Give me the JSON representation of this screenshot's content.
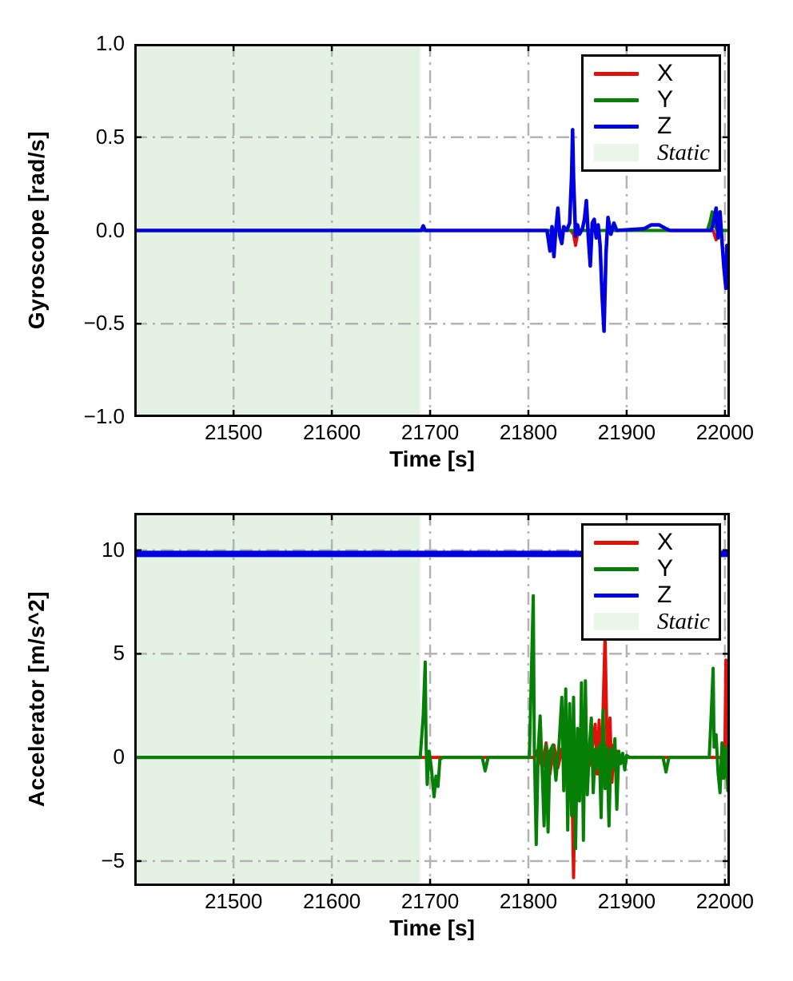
{
  "figure": {
    "background_color": "#ffffff"
  },
  "chart_data": [
    {
      "type": "line",
      "title": "",
      "xlabel": "Time [s]",
      "ylabel": "Gyroscope [rad/s]",
      "xlim": [
        21399,
        22005
      ],
      "ylim": [
        -1.0,
        1.0
      ],
      "xticks": [
        21500,
        21600,
        21700,
        21800,
        21900,
        22000
      ],
      "xtick_labels": [
        "21500",
        "21600",
        "21700",
        "21800",
        "21900",
        "22000"
      ],
      "yticks": [
        1.0,
        0.5,
        0.0,
        -0.5,
        -1.0
      ],
      "ytick_labels": [
        "1.0",
        "0.5",
        "0.0",
        "−0.5",
        "−1.0"
      ],
      "grid": {
        "style": "dash-dot",
        "color": "#b3b3b3",
        "on": true
      },
      "axes": {
        "border_color": "#000000",
        "tick_direction": "in"
      },
      "legend_position": "upper right",
      "legend": [
        {
          "label": "X",
          "swatch": "line",
          "color": "#e01108"
        },
        {
          "label": "Y",
          "swatch": "line",
          "color": "#067f06"
        },
        {
          "label": "Z",
          "swatch": "line",
          "color": "#0000e0"
        },
        {
          "label": "Static",
          "swatch": "patch",
          "color": "#e9f7e6",
          "italic": true
        }
      ],
      "static_region": {
        "label": "Static",
        "x0": 21399,
        "x1": 21690,
        "color": "#e3f2e2"
      },
      "series": [
        {
          "name": "X",
          "color": "#e01108",
          "lw": 4,
          "points": [
            [
              21399,
              0
            ],
            [
              21843,
              0
            ],
            [
              21846,
              -0.02
            ],
            [
              21848,
              -0.08
            ],
            [
              21850,
              -0.02
            ],
            [
              21853,
              0
            ],
            [
              21988,
              0
            ],
            [
              21991,
              -0.05
            ],
            [
              21994,
              0
            ],
            [
              22005,
              0
            ]
          ]
        },
        {
          "name": "Y",
          "color": "#067f06",
          "lw": 4,
          "points": [
            [
              21399,
              0
            ],
            [
              21982,
              0
            ],
            [
              21985,
              0.05
            ],
            [
              21987,
              0.1
            ],
            [
              21990,
              0.02
            ],
            [
              21993,
              0
            ],
            [
              22005,
              0
            ]
          ]
        },
        {
          "name": "Z",
          "color": "#0000e0",
          "lw": 4.5,
          "points": [
            [
              21399,
              0
            ],
            [
              21691,
              0
            ],
            [
              21693,
              0.025
            ],
            [
              21695,
              0
            ],
            [
              21819,
              0
            ],
            [
              21822,
              -0.11
            ],
            [
              21824,
              0.02
            ],
            [
              21826,
              -0.14
            ],
            [
              21828,
              0.01
            ],
            [
              21830,
              0.12
            ],
            [
              21832,
              -0.03
            ],
            [
              21834,
              -0.07
            ],
            [
              21836,
              0.02
            ],
            [
              21839,
              0
            ],
            [
              21842,
              0.04
            ],
            [
              21844,
              0.3
            ],
            [
              21845,
              0.54
            ],
            [
              21846,
              0.28
            ],
            [
              21848,
              -0.03
            ],
            [
              21850,
              0.03
            ],
            [
              21852,
              -0.02
            ],
            [
              21855,
              0.01
            ],
            [
              21857,
              0.06
            ],
            [
              21859,
              0.16
            ],
            [
              21861,
              -0.04
            ],
            [
              21863,
              -0.19
            ],
            [
              21865,
              0.04
            ],
            [
              21867,
              0.06
            ],
            [
              21869,
              -0.04
            ],
            [
              21871,
              0.03
            ],
            [
              21873,
              -0.08
            ],
            [
              21875,
              -0.35
            ],
            [
              21877,
              -0.54
            ],
            [
              21879,
              -0.12
            ],
            [
              21881,
              0.07
            ],
            [
              21884,
              -0.02
            ],
            [
              21887,
              0.04
            ],
            [
              21890,
              0
            ],
            [
              21918,
              0.01
            ],
            [
              21925,
              0.03
            ],
            [
              21933,
              0.03
            ],
            [
              21940,
              0.01
            ],
            [
              21944,
              0
            ],
            [
              21986,
              0
            ],
            [
              21989,
              0.06
            ],
            [
              21991,
              0.12
            ],
            [
              21993,
              -0.04
            ],
            [
              21995,
              0.1
            ],
            [
              21997,
              -0.06
            ],
            [
              21999,
              -0.2
            ],
            [
              22001,
              -0.31
            ],
            [
              22002,
              -0.08
            ],
            [
              22003,
              -0.25
            ],
            [
              22004,
              -0.29
            ],
            [
              22005,
              -0.12
            ]
          ]
        }
      ]
    },
    {
      "type": "line",
      "title": "",
      "xlabel": "Time [s]",
      "ylabel": "Accelerator [m/s^2]",
      "xlim": [
        21399,
        22005
      ],
      "ylim": [
        -6.2,
        11.8
      ],
      "xticks": [
        21500,
        21600,
        21700,
        21800,
        21900,
        22000
      ],
      "xtick_labels": [
        "21500",
        "21600",
        "21700",
        "21800",
        "21900",
        "22000"
      ],
      "yticks": [
        10,
        5,
        0,
        -5
      ],
      "ytick_labels": [
        "10",
        "5",
        "0",
        "−5"
      ],
      "grid": {
        "style": "dash-dot",
        "color": "#b3b3b3",
        "on": true
      },
      "axes": {
        "border_color": "#000000",
        "tick_direction": "in"
      },
      "legend_position": "upper right",
      "legend": [
        {
          "label": "X",
          "swatch": "line",
          "color": "#e01108"
        },
        {
          "label": "Y",
          "swatch": "line",
          "color": "#067f06"
        },
        {
          "label": "Z",
          "swatch": "line",
          "color": "#0000e0"
        },
        {
          "label": "Static",
          "swatch": "patch",
          "color": "#e9f7e6",
          "italic": true
        }
      ],
      "static_region": {
        "label": "Static",
        "x0": 21399,
        "x1": 21690,
        "color": "#e3f2e2"
      },
      "series": [
        {
          "name": "X",
          "color": "#e01108",
          "lw": 4,
          "points": [
            [
              21399,
              0
            ],
            [
              21806,
              0
            ],
            [
              21810,
              0.4
            ],
            [
              21814,
              -0.5
            ],
            [
              21818,
              0.7
            ],
            [
              21822,
              -0.8
            ],
            [
              21826,
              0.6
            ],
            [
              21830,
              -0.5
            ],
            [
              21834,
              0.4
            ],
            [
              21838,
              -0.9
            ],
            [
              21840,
              0.5
            ],
            [
              21842,
              -1.3
            ],
            [
              21844,
              -0.4
            ],
            [
              21846,
              -5.8
            ],
            [
              21847,
              -2.0
            ],
            [
              21848,
              0.5
            ],
            [
              21850,
              -0.8
            ],
            [
              21852,
              0.6
            ],
            [
              21854,
              -0.6
            ],
            [
              21856,
              0.5
            ],
            [
              21858,
              -0.5
            ],
            [
              21860,
              0.4
            ],
            [
              21862,
              -0.4
            ],
            [
              21865,
              0.5
            ],
            [
              21868,
              1.6
            ],
            [
              21870,
              -0.8
            ],
            [
              21872,
              1.8
            ],
            [
              21874,
              -1.1
            ],
            [
              21876,
              2.2
            ],
            [
              21878,
              5.9
            ],
            [
              21880,
              0.8
            ],
            [
              21881,
              -1.5
            ],
            [
              21883,
              1.9
            ],
            [
              21885,
              -1.2
            ],
            [
              21887,
              0.6
            ],
            [
              21889,
              -0.7
            ],
            [
              21891,
              0.3
            ],
            [
              21894,
              0
            ],
            [
              21996,
              0
            ],
            [
              21998,
              -1.0
            ],
            [
              22000,
              0.6
            ],
            [
              22001,
              4.7
            ],
            [
              22002,
              0.5
            ],
            [
              22003,
              -1.2
            ],
            [
              22004,
              1.0
            ],
            [
              22005,
              -0.5
            ]
          ]
        },
        {
          "name": "Y",
          "color": "#067f06",
          "lw": 4,
          "points": [
            [
              21399,
              0
            ],
            [
              21690,
              0
            ],
            [
              21693,
              2.0
            ],
            [
              21695,
              4.6
            ],
            [
              21696,
              0.5
            ],
            [
              21697,
              -1.3
            ],
            [
              21699,
              0.3
            ],
            [
              21701,
              -0.4
            ],
            [
              21704,
              -1.9
            ],
            [
              21706,
              -0.9
            ],
            [
              21708,
              -1.4
            ],
            [
              21710,
              -0.1
            ],
            [
              21713,
              0
            ],
            [
              21753,
              0
            ],
            [
              21756,
              -0.65
            ],
            [
              21759,
              0
            ],
            [
              21801,
              0
            ],
            [
              21803,
              4.0
            ],
            [
              21805,
              7.8
            ],
            [
              21806,
              0.5
            ],
            [
              21808,
              -4.2
            ],
            [
              21810,
              0.4
            ],
            [
              21812,
              2.0
            ],
            [
              21814,
              -0.6
            ],
            [
              21816,
              -3.3
            ],
            [
              21818,
              0.6
            ],
            [
              21820,
              -3.6
            ],
            [
              21822,
              0.3
            ],
            [
              21825,
              0.6
            ],
            [
              21828,
              -1.1
            ],
            [
              21831,
              0.5
            ],
            [
              21834,
              2.9
            ],
            [
              21836,
              -1.6
            ],
            [
              21838,
              3.3
            ],
            [
              21840,
              -3.5
            ],
            [
              21842,
              2.6
            ],
            [
              21844,
              -2.8
            ],
            [
              21846,
              2.9
            ],
            [
              21848,
              -4.4
            ],
            [
              21850,
              1.4
            ],
            [
              21852,
              -2.1
            ],
            [
              21854,
              3.6
            ],
            [
              21856,
              -4.0
            ],
            [
              21858,
              3.7
            ],
            [
              21860,
              -1.8
            ],
            [
              21862,
              0.4
            ],
            [
              21864,
              1.9
            ],
            [
              21866,
              -1.7
            ],
            [
              21868,
              0.4
            ],
            [
              21870,
              -0.5
            ],
            [
              21872,
              0.6
            ],
            [
              21874,
              -2.9
            ],
            [
              21876,
              2.3
            ],
            [
              21878,
              -1.5
            ],
            [
              21880,
              0.5
            ],
            [
              21882,
              -3.3
            ],
            [
              21884,
              0.4
            ],
            [
              21886,
              -0.5
            ],
            [
              21888,
              0.9
            ],
            [
              21890,
              -2.5
            ],
            [
              21892,
              0.3
            ],
            [
              21894,
              -0.3
            ],
            [
              21896,
              0.2
            ],
            [
              21898,
              -0.6
            ],
            [
              21900,
              0.1
            ],
            [
              21903,
              0
            ],
            [
              21937,
              0
            ],
            [
              21940,
              -0.7
            ],
            [
              21943,
              0
            ],
            [
              21984,
              0
            ],
            [
              21986,
              2.0
            ],
            [
              21988,
              4.3
            ],
            [
              21989,
              0.5
            ],
            [
              21991,
              1.1
            ],
            [
              21993,
              -0.7
            ],
            [
              21995,
              -1.7
            ],
            [
              21997,
              0.7
            ],
            [
              21999,
              -1.0
            ],
            [
              22001,
              0.5
            ],
            [
              22003,
              -1.6
            ],
            [
              22005,
              0.9
            ]
          ]
        },
        {
          "name": "Z",
          "color": "#0000e0",
          "lw": 8,
          "points": [
            [
              21399,
              9.82
            ],
            [
              22005,
              9.82
            ]
          ]
        }
      ]
    }
  ]
}
